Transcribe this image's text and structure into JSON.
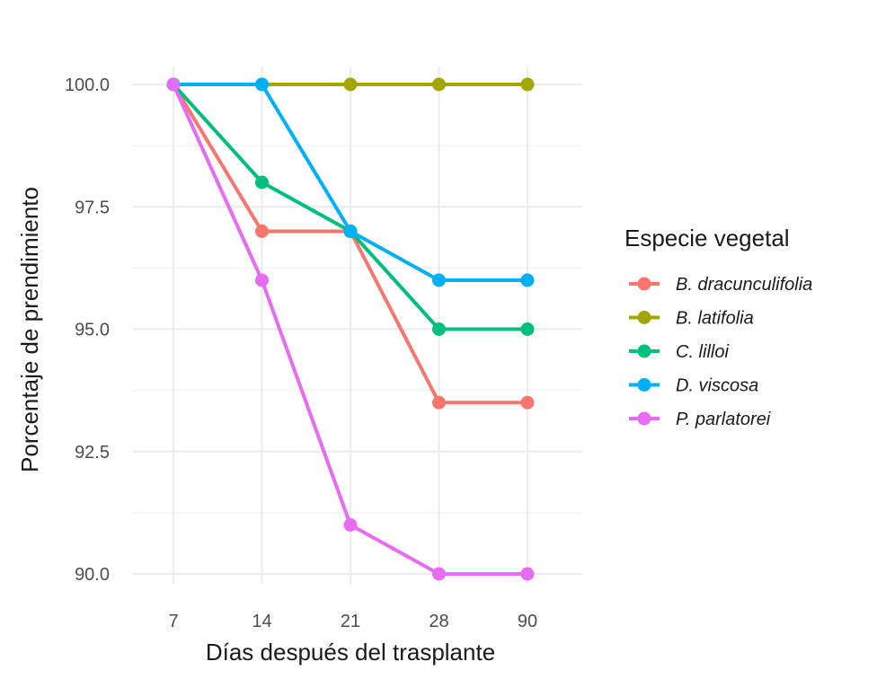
{
  "chart_data": {
    "type": "line",
    "xlabel": "Días después del trasplante",
    "ylabel": "Porcentaje de prendimiento",
    "categories": [
      "7",
      "14",
      "21",
      "28",
      "90"
    ],
    "ylim": [
      89.8,
      100.2
    ],
    "yticks": [
      "90.0",
      "92.5",
      "95.0",
      "97.5",
      "100.0"
    ],
    "ytick_values": [
      90.0,
      92.5,
      95.0,
      97.5,
      100.0
    ],
    "grid": true,
    "legend": {
      "title": "Especie vegetal",
      "placement": "right"
    },
    "series": [
      {
        "name": "B. dracunculifolia",
        "color": "#F8766D",
        "values": [
          100,
          97,
          97,
          93.5,
          93.5
        ]
      },
      {
        "name": "B. latifolia",
        "color": "#A3A500",
        "values": [
          100,
          100,
          100,
          100,
          100
        ]
      },
      {
        "name": "C. lilloi",
        "color": "#00BF7D",
        "values": [
          100,
          98,
          97,
          95,
          95
        ]
      },
      {
        "name": "D. viscosa",
        "color": "#00B0F6",
        "values": [
          100,
          100,
          97,
          96,
          96
        ]
      },
      {
        "name": "P. parlatorei",
        "color": "#E76BF3",
        "values": [
          100,
          96,
          91,
          90,
          90
        ]
      }
    ]
  }
}
